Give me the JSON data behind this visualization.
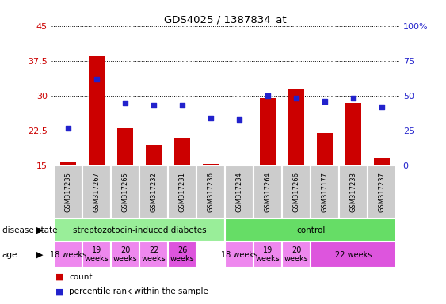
{
  "title": "GDS4025 / 1387834_at",
  "samples": [
    "GSM317235",
    "GSM317267",
    "GSM317265",
    "GSM317232",
    "GSM317231",
    "GSM317236",
    "GSM317234",
    "GSM317264",
    "GSM317266",
    "GSM317177",
    "GSM317233",
    "GSM317237"
  ],
  "counts": [
    15.7,
    38.5,
    23.0,
    19.5,
    21.0,
    15.4,
    15.1,
    29.5,
    31.5,
    22.0,
    28.5,
    16.5
  ],
  "percentiles": [
    27,
    62,
    45,
    43,
    43,
    34,
    33,
    50,
    48,
    46,
    48,
    42
  ],
  "ylim_left": [
    15,
    45
  ],
  "ylim_right": [
    0,
    100
  ],
  "yticks_left": [
    15,
    22.5,
    30,
    37.5,
    45
  ],
  "yticks_right": [
    0,
    25,
    50,
    75,
    100
  ],
  "ytick_labels_left": [
    "15",
    "22.5",
    "30",
    "37.5",
    "45"
  ],
  "ytick_labels_right": [
    "0",
    "25",
    "50",
    "75",
    "100%"
  ],
  "bar_color": "#cc0000",
  "dot_color": "#2222cc",
  "disease_state_groups": [
    {
      "label": "streptozotocin-induced diabetes",
      "start": 0,
      "end": 6,
      "color": "#99ee99"
    },
    {
      "label": "control",
      "start": 6,
      "end": 12,
      "color": "#66dd66"
    }
  ],
  "age_groups": [
    {
      "label": "18 weeks",
      "start": 0,
      "end": 1,
      "color": "#ee88ee"
    },
    {
      "label": "19\nweeks",
      "start": 1,
      "end": 2,
      "color": "#ee88ee"
    },
    {
      "label": "20\nweeks",
      "start": 2,
      "end": 3,
      "color": "#ee88ee"
    },
    {
      "label": "22\nweeks",
      "start": 3,
      "end": 4,
      "color": "#ee88ee"
    },
    {
      "label": "26\nweeks",
      "start": 4,
      "end": 5,
      "color": "#dd55dd"
    },
    {
      "label": "18 weeks",
      "start": 6,
      "end": 7,
      "color": "#ee88ee"
    },
    {
      "label": "19\nweeks",
      "start": 7,
      "end": 8,
      "color": "#ee88ee"
    },
    {
      "label": "20\nweeks",
      "start": 8,
      "end": 9,
      "color": "#ee88ee"
    },
    {
      "label": "22 weeks",
      "start": 9,
      "end": 12,
      "color": "#dd55dd"
    }
  ],
  "tick_color_left": "#cc0000",
  "tick_color_right": "#2222cc",
  "sample_bg": "#cccccc",
  "legend_items": [
    {
      "color": "#cc0000",
      "label": "count"
    },
    {
      "color": "#2222cc",
      "label": "percentile rank within the sample"
    }
  ]
}
